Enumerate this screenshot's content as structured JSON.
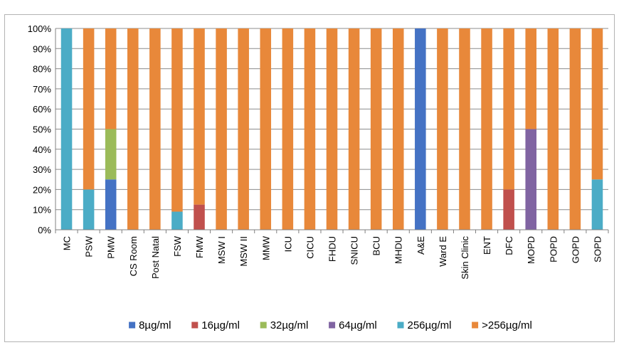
{
  "chart_data": {
    "type": "bar",
    "stacked": true,
    "title": "",
    "xlabel": "",
    "ylabel": "",
    "ylim": [
      0,
      100
    ],
    "y_ticks": [
      "0%",
      "10%",
      "20%",
      "30%",
      "40%",
      "50%",
      "60%",
      "70%",
      "80%",
      "90%",
      "100%"
    ],
    "grid": true,
    "legend_position": "bottom",
    "categories": [
      "MC",
      "PSW",
      "PMW",
      "CS Room",
      "Post Natal",
      "FSW",
      "FMW",
      "MSW I",
      "MSW II",
      "MMW",
      "ICU",
      "CICU",
      "FHDU",
      "SNICU",
      "BCU",
      "MHDU",
      "A&E",
      "Ward E",
      "Skin Clinic",
      "ENT",
      "DFC",
      "MOPD",
      "POPD",
      "GOPD",
      "SOPD"
    ],
    "series": [
      {
        "name": "8µg/ml",
        "color": "#4472C4",
        "values": [
          0,
          0,
          25,
          0,
          0,
          0,
          0,
          0,
          0,
          0,
          0,
          0,
          0,
          0,
          0,
          0,
          100,
          0,
          0,
          0,
          0,
          0,
          0,
          0,
          0
        ]
      },
      {
        "name": "16µg/ml",
        "color": "#C0504D",
        "values": [
          0,
          0,
          0,
          0,
          0,
          0,
          12.5,
          0,
          0,
          0,
          0,
          0,
          0,
          0,
          0,
          0,
          0,
          0,
          0,
          0,
          20,
          0,
          0,
          0,
          0
        ]
      },
      {
        "name": "32µg/ml",
        "color": "#9BBB59",
        "values": [
          0,
          0,
          25,
          0,
          0,
          0,
          0,
          0,
          0,
          0,
          0,
          0,
          0,
          0,
          0,
          0,
          0,
          0,
          0,
          0,
          0,
          0,
          0,
          0,
          0
        ]
      },
      {
        "name": "64µg/ml",
        "color": "#8064A2",
        "values": [
          0,
          0,
          0,
          0,
          0,
          0,
          0,
          0,
          0,
          0,
          0,
          0,
          0,
          0,
          0,
          0,
          0,
          0,
          0,
          0,
          0,
          50,
          0,
          0,
          0
        ]
      },
      {
        "name": "256µg/ml",
        "color": "#4BACC6",
        "values": [
          100,
          20,
          0,
          0,
          0,
          9,
          0,
          0,
          0,
          0,
          0,
          0,
          0,
          0,
          0,
          0,
          0,
          0,
          0,
          0,
          0,
          0,
          0,
          0,
          25
        ]
      },
      {
        "name": ">256µg/ml",
        "color": "#E8883A",
        "values": [
          0,
          80,
          50,
          100,
          100,
          91,
          87.5,
          100,
          100,
          100,
          100,
          100,
          100,
          100,
          100,
          100,
          0,
          100,
          100,
          100,
          80,
          50,
          100,
          100,
          75
        ]
      }
    ]
  }
}
